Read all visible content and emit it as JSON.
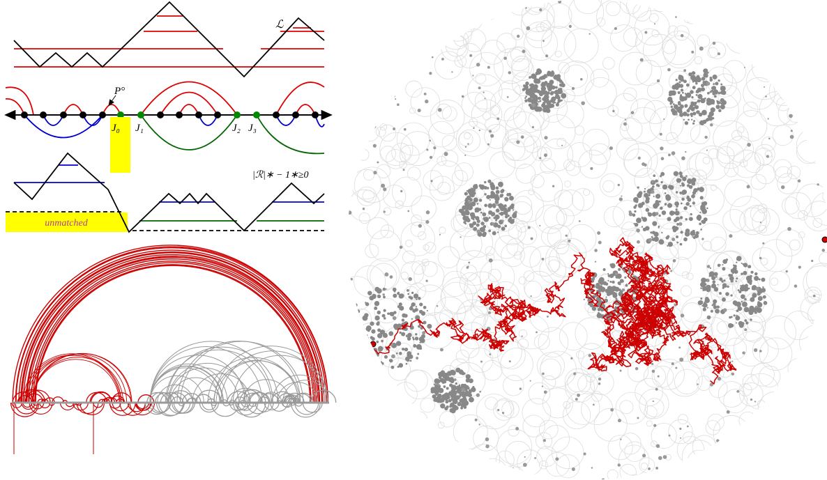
{
  "labels": {
    "curve_l": "ℒ",
    "p_circ": "P°",
    "j0": "J₀",
    "j1": "J₁",
    "j2": "J₂",
    "j3": "J₃",
    "r_label": "|ℛ|∗ − 1∗≥0",
    "unmatched": "unmatched"
  }
}
